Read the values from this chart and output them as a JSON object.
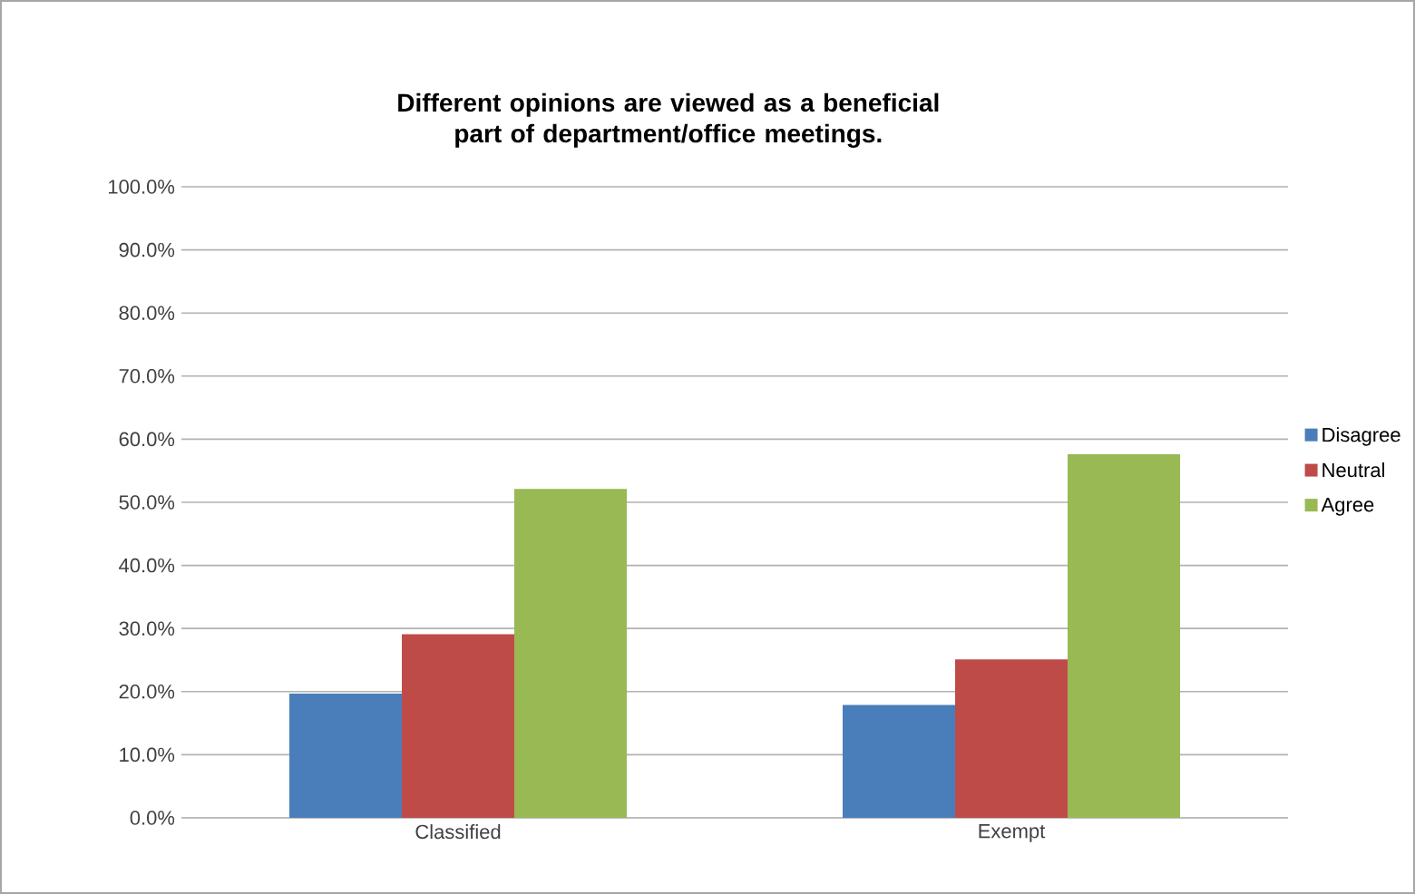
{
  "chart_data": {
    "type": "bar",
    "title": "Different opinions are viewed as a beneficial part of department/office meetings.",
    "categories": [
      "Classified",
      "Exempt"
    ],
    "series": [
      {
        "name": "Disagree",
        "color": "#4a7ebb",
        "values": [
          19.7,
          17.9
        ]
      },
      {
        "name": "Neutral",
        "color": "#be4b48",
        "values": [
          29.1,
          25.1
        ]
      },
      {
        "name": "Agree",
        "color": "#98b954",
        "values": [
          52.1,
          57.6
        ]
      }
    ],
    "ylim": [
      0,
      100
    ],
    "yticks": [
      {
        "value": 0,
        "label": "0.0%"
      },
      {
        "value": 10,
        "label": "10.0%"
      },
      {
        "value": 20,
        "label": "20.0%"
      },
      {
        "value": 30,
        "label": "30.0%"
      },
      {
        "value": 40,
        "label": "40.0%"
      },
      {
        "value": 50,
        "label": "50.0%"
      },
      {
        "value": 60,
        "label": "60.0%"
      },
      {
        "value": 70,
        "label": "70.0%"
      },
      {
        "value": 80,
        "label": "80.0%"
      },
      {
        "value": 90,
        "label": "90.0%"
      },
      {
        "value": 100,
        "label": "100.0%"
      }
    ],
    "grid": "y",
    "legend": "right"
  }
}
